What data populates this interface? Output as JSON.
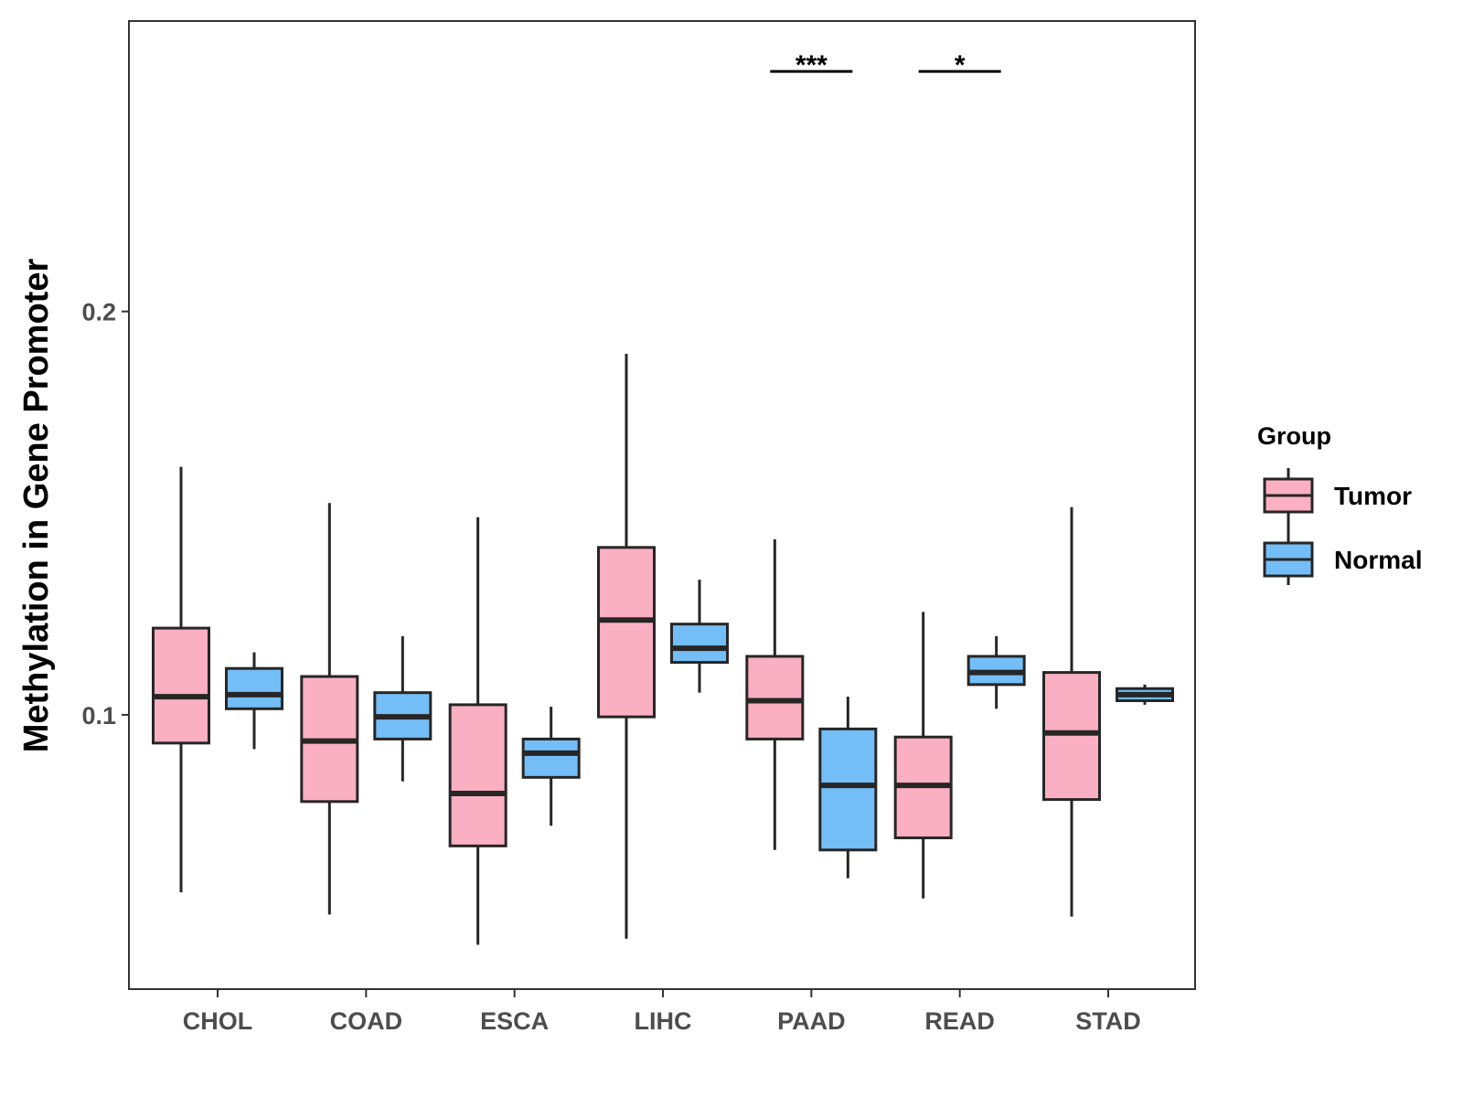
{
  "chart_data": {
    "type": "boxplot",
    "title": "",
    "xlabel": "",
    "ylabel": "Methylation in Gene Promoter",
    "ylim": [
      0.032,
      0.272
    ],
    "yticks": [
      {
        "value": 0.1,
        "label": "0.1"
      },
      {
        "value": 0.2,
        "label": "0.2"
      }
    ],
    "categories": [
      "CHOL",
      "COAD",
      "ESCA",
      "LIHC",
      "PAAD",
      "READ",
      "STAD"
    ],
    "legend": {
      "title": "Group",
      "position": "right",
      "entries": [
        {
          "name": "Tumor",
          "color": "#FBAFC2"
        },
        {
          "name": "Normal",
          "color": "#74BEF7"
        }
      ]
    },
    "series": [
      {
        "name": "Tumor",
        "color": "#FBAFC2",
        "boxes": [
          {
            "category": "CHOL",
            "min": 0.056,
            "q1": 0.093,
            "median": 0.1045,
            "q3": 0.1215,
            "max": 0.1615
          },
          {
            "category": "COAD",
            "min": 0.0505,
            "q1": 0.0785,
            "median": 0.0935,
            "q3": 0.1095,
            "max": 0.1525
          },
          {
            "category": "ESCA",
            "min": 0.043,
            "q1": 0.0675,
            "median": 0.0805,
            "q3": 0.1025,
            "max": 0.149
          },
          {
            "category": "LIHC",
            "min": 0.0445,
            "q1": 0.0995,
            "median": 0.1235,
            "q3": 0.1415,
            "max": 0.1895
          },
          {
            "category": "PAAD",
            "min": 0.0665,
            "q1": 0.094,
            "median": 0.1035,
            "q3": 0.1145,
            "max": 0.1435
          },
          {
            "category": "READ",
            "min": 0.0545,
            "q1": 0.0695,
            "median": 0.0825,
            "q3": 0.0945,
            "max": 0.1255
          },
          {
            "category": "STAD",
            "min": 0.05,
            "q1": 0.079,
            "median": 0.0955,
            "q3": 0.1105,
            "max": 0.1515
          }
        ]
      },
      {
        "name": "Normal",
        "color": "#74BEF7",
        "boxes": [
          {
            "category": "CHOL",
            "min": 0.0915,
            "q1": 0.1015,
            "median": 0.105,
            "q3": 0.1115,
            "max": 0.1155
          },
          {
            "category": "COAD",
            "min": 0.0835,
            "q1": 0.094,
            "median": 0.0995,
            "q3": 0.1055,
            "max": 0.1195
          },
          {
            "category": "ESCA",
            "min": 0.0725,
            "q1": 0.0845,
            "median": 0.0905,
            "q3": 0.094,
            "max": 0.102
          },
          {
            "category": "LIHC",
            "min": 0.1055,
            "q1": 0.113,
            "median": 0.1165,
            "q3": 0.1225,
            "max": 0.1335
          },
          {
            "category": "PAAD",
            "min": 0.0595,
            "q1": 0.0665,
            "median": 0.0825,
            "q3": 0.0965,
            "max": 0.1045
          },
          {
            "category": "READ",
            "min": 0.1015,
            "q1": 0.1075,
            "median": 0.1105,
            "q3": 0.1145,
            "max": 0.1195
          },
          {
            "category": "STAD",
            "min": 0.1025,
            "q1": 0.1035,
            "median": 0.105,
            "q3": 0.1065,
            "max": 0.1075
          }
        ]
      }
    ],
    "annotations": [
      {
        "category": "PAAD",
        "label": "***",
        "y": 0.2595
      },
      {
        "category": "READ",
        "label": "*",
        "y": 0.2595
      }
    ]
  }
}
